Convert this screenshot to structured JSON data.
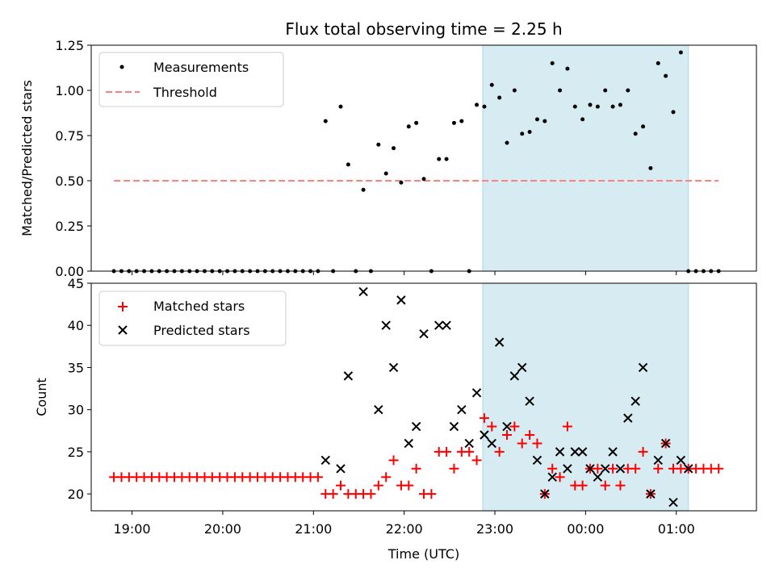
{
  "title": "Flux total observing time = 2.25 h",
  "xlabel": "Time (UTC)",
  "xtick_labels": [
    "19:00",
    "20:00",
    "21:00",
    "22:00",
    "23:00",
    "00:00",
    "01:00"
  ],
  "colors": {
    "measurement": "#000000",
    "threshold": "#ff7f7f",
    "matched": "#ff0000",
    "predicted": "#000000",
    "span": "#add8e6"
  },
  "chart_data": [
    {
      "type": "scatter",
      "ylabel": "Matched/Predicted stars",
      "xlim": [
        "18:33",
        "01:53"
      ],
      "ylim": [
        0,
        1.25
      ],
      "yticks": [
        0,
        0.25,
        0.5,
        0.75,
        1.0,
        1.25
      ],
      "ytick_labels": [
        "0.00",
        "0.25",
        "0.50",
        "0.75",
        "1.00",
        "1.25"
      ],
      "highlight_span": [
        "22:52",
        "01:08"
      ],
      "threshold": {
        "name": "Threshold",
        "y": 0.5,
        "x_range": [
          "18:48",
          "01:28"
        ]
      },
      "legend": {
        "location": "upper-left",
        "entries": [
          "Measurements",
          "Threshold"
        ]
      },
      "series": [
        {
          "name": "Measurements",
          "x": [
            "18:48",
            "18:53",
            "18:58",
            "19:03",
            "19:08",
            "19:13",
            "19:18",
            "19:23",
            "19:28",
            "19:33",
            "19:38",
            "19:43",
            "19:48",
            "19:53",
            "19:58",
            "20:03",
            "20:08",
            "20:13",
            "20:18",
            "20:23",
            "20:28",
            "20:33",
            "20:38",
            "20:43",
            "20:48",
            "20:53",
            "20:58",
            "21:03",
            "21:08",
            "21:13",
            "21:18",
            "21:23",
            "21:28",
            "21:33",
            "21:38",
            "21:43",
            "21:48",
            "21:53",
            "21:58",
            "22:03",
            "22:08",
            "22:13",
            "22:18",
            "22:23",
            "22:28",
            "22:33",
            "22:38",
            "22:43",
            "22:48",
            "22:53",
            "22:58",
            "23:03",
            "23:08",
            "23:13",
            "23:18",
            "23:23",
            "23:28",
            "23:33",
            "23:38",
            "23:43",
            "23:48",
            "23:53",
            "23:58",
            "00:03",
            "00:08",
            "00:13",
            "00:18",
            "00:23",
            "00:28",
            "00:33",
            "00:38",
            "00:43",
            "00:48",
            "00:53",
            "00:58",
            "01:03",
            "01:08",
            "01:13",
            "01:18",
            "01:23",
            "01:28"
          ],
          "y": [
            0,
            0,
            0,
            0,
            0,
            0,
            0,
            0,
            0,
            0,
            0,
            0,
            0,
            0,
            0,
            0,
            0,
            0,
            0,
            0,
            0,
            0,
            0,
            0,
            0,
            0,
            0,
            0,
            0.83,
            0,
            0.91,
            0.59,
            0,
            0.45,
            0,
            0.7,
            0.54,
            0.68,
            0.49,
            0.8,
            0.82,
            0.51,
            0,
            0.62,
            0.62,
            0.82,
            0.83,
            0,
            0.92,
            0.91,
            1.03,
            0.96,
            0.71,
            1.0,
            0.76,
            0.77,
            0.84,
            0.83,
            1.15,
            1.0,
            1.12,
            0.91,
            0.84,
            0.92,
            0.91,
            1.0,
            0.91,
            0.92,
            1.0,
            0.76,
            0.8,
            0.57,
            1.15,
            1.08,
            0.88,
            1.21,
            0,
            0,
            0,
            0,
            0
          ]
        }
      ]
    },
    {
      "type": "scatter",
      "ylabel": "Count",
      "xlim": [
        "18:33",
        "01:53"
      ],
      "ylim": [
        18,
        45
      ],
      "yticks": [
        20,
        25,
        30,
        35,
        40,
        45
      ],
      "ytick_labels": [
        "20",
        "25",
        "30",
        "35",
        "40",
        "45"
      ],
      "highlight_span": [
        "22:52",
        "01:08"
      ],
      "legend": {
        "location": "upper-left",
        "entries": [
          "Matched stars",
          "Predicted stars"
        ]
      },
      "series": [
        {
          "name": "Matched stars",
          "x": [
            "18:48",
            "18:53",
            "18:58",
            "19:03",
            "19:08",
            "19:13",
            "19:18",
            "19:23",
            "19:28",
            "19:33",
            "19:38",
            "19:43",
            "19:48",
            "19:53",
            "19:58",
            "20:03",
            "20:08",
            "20:13",
            "20:18",
            "20:23",
            "20:28",
            "20:33",
            "20:38",
            "20:43",
            "20:48",
            "20:53",
            "20:58",
            "21:03",
            "21:08",
            "21:13",
            "21:18",
            "21:23",
            "21:28",
            "21:33",
            "21:38",
            "21:43",
            "21:48",
            "21:53",
            "21:58",
            "22:03",
            "22:08",
            "22:13",
            "22:18",
            "22:23",
            "22:28",
            "22:33",
            "22:38",
            "22:43",
            "22:48",
            "22:53",
            "22:58",
            "23:03",
            "23:08",
            "23:13",
            "23:18",
            "23:23",
            "23:28",
            "23:33",
            "23:38",
            "23:43",
            "23:48",
            "23:53",
            "23:58",
            "00:03",
            "00:08",
            "00:13",
            "00:18",
            "00:23",
            "00:28",
            "00:33",
            "00:38",
            "00:43",
            "00:48",
            "00:53",
            "00:58",
            "01:03",
            "01:08",
            "01:13",
            "01:18",
            "01:23",
            "01:28"
          ],
          "y": [
            22,
            22,
            22,
            22,
            22,
            22,
            22,
            22,
            22,
            22,
            22,
            22,
            22,
            22,
            22,
            22,
            22,
            22,
            22,
            22,
            22,
            22,
            22,
            22,
            22,
            22,
            22,
            22,
            20,
            20,
            21,
            20,
            20,
            20,
            20,
            21,
            22,
            24,
            21,
            21,
            23,
            20,
            20,
            25,
            25,
            23,
            25,
            25,
            24,
            29,
            28,
            25,
            27,
            28,
            26,
            27,
            26,
            20,
            23,
            22,
            28,
            21,
            21,
            23,
            23,
            21,
            23,
            21,
            23,
            23,
            25,
            20,
            23,
            26,
            23,
            23,
            23,
            23,
            23,
            23,
            23
          ]
        },
        {
          "name": "Predicted stars",
          "x": [
            "21:08",
            "21:18",
            "21:23",
            "21:33",
            "21:43",
            "21:48",
            "21:53",
            "21:58",
            "22:03",
            "22:08",
            "22:13",
            "22:23",
            "22:28",
            "22:33",
            "22:38",
            "22:43",
            "22:48",
            "22:53",
            "22:58",
            "23:03",
            "23:08",
            "23:13",
            "23:18",
            "23:23",
            "23:28",
            "23:33",
            "23:38",
            "23:43",
            "23:48",
            "23:53",
            "23:58",
            "00:03",
            "00:08",
            "00:13",
            "00:18",
            "00:23",
            "00:28",
            "00:33",
            "00:38",
            "00:43",
            "00:48",
            "00:53",
            "00:58",
            "01:03",
            "01:08"
          ],
          "y": [
            24,
            23,
            34,
            44,
            30,
            40,
            35,
            43,
            26,
            28,
            39,
            40,
            40,
            28,
            30,
            26,
            32,
            27,
            26,
            38,
            28,
            34,
            35,
            31,
            24,
            20,
            22,
            25,
            23,
            25,
            25,
            23,
            22,
            23,
            25,
            23,
            29,
            31,
            35,
            20,
            24,
            26,
            19,
            24,
            23
          ]
        }
      ]
    }
  ]
}
